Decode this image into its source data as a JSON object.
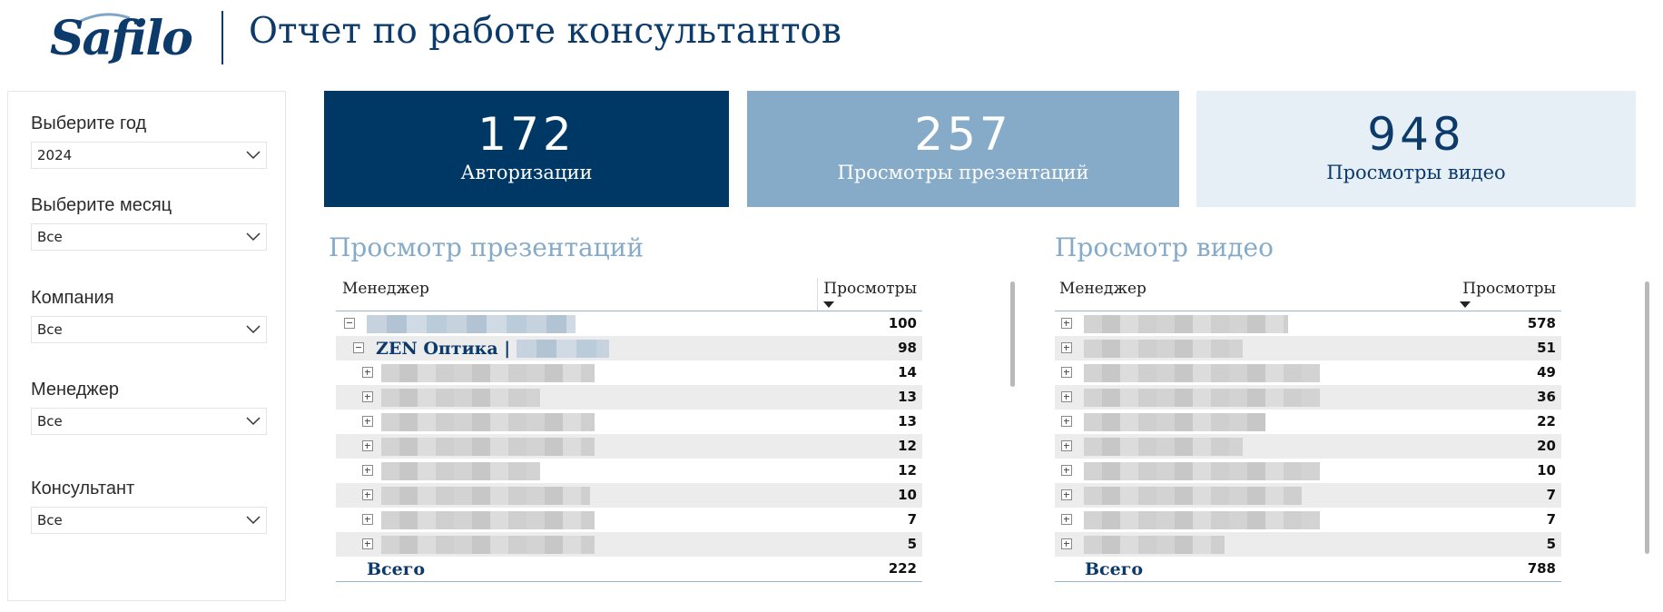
{
  "header": {
    "logo_text": "Safilo",
    "title": "Отчет по работе консультантов"
  },
  "filters": [
    {
      "label": "Выберите год",
      "value": "2024"
    },
    {
      "label": "Выберите месяц",
      "value": "Все"
    },
    {
      "label": "Компания",
      "value": "Все"
    },
    {
      "label": "Менеджер",
      "value": "Все"
    },
    {
      "label": "Консультант",
      "value": "Все"
    }
  ],
  "kpis": [
    {
      "value": "172",
      "label": "Авторизации",
      "color": "#003865"
    },
    {
      "value": "257",
      "label": "Просмотры презентаций",
      "color": "#86abc9"
    },
    {
      "value": "948",
      "label": "Просмотры видео",
      "color": "#e6eef6"
    }
  ],
  "presentations": {
    "title": "Просмотр презентаций",
    "col_manager": "Менеджер",
    "col_views": "Просмотры",
    "top_row_value": "100",
    "group_label": "ZEN Оптика |",
    "group_value": "98",
    "rows": [
      "14",
      "13",
      "13",
      "12",
      "12",
      "10",
      "7",
      "5"
    ],
    "total_label": "Всего",
    "total_value": "222"
  },
  "videos": {
    "title": "Просмотр видео",
    "col_manager": "Менеджер",
    "col_views": "Просмотры",
    "rows": [
      "578",
      "51",
      "49",
      "36",
      "22",
      "20",
      "10",
      "7",
      "7",
      "5"
    ],
    "total_label": "Всего",
    "total_value": "788"
  }
}
